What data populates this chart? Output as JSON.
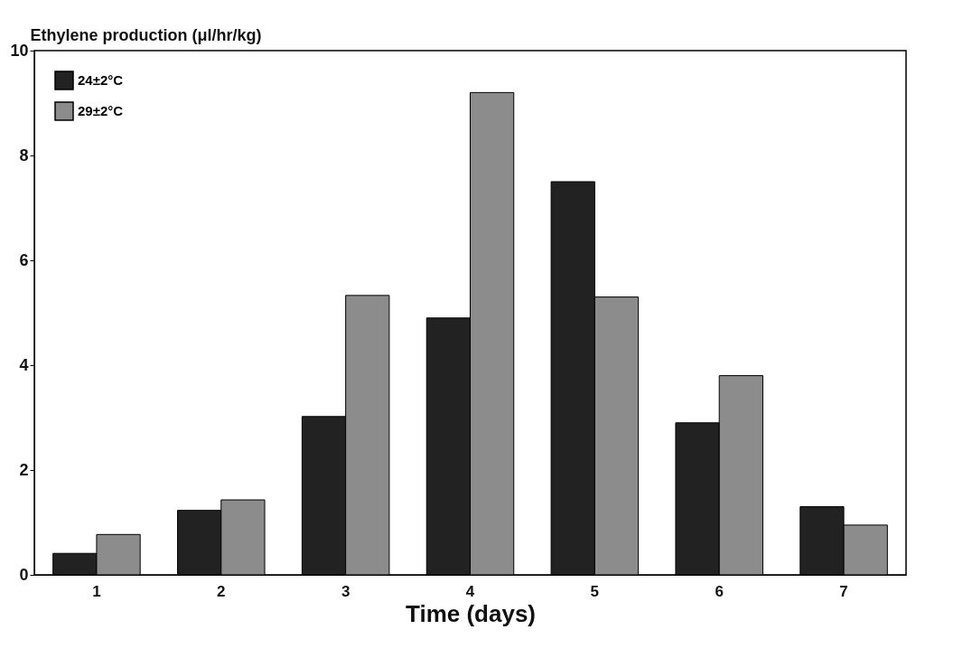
{
  "chart_data": {
    "type": "bar",
    "ylabel": "Ethylene production (μl/hr/kg)",
    "xlabel": "Time (days)",
    "categories": [
      "1",
      "2",
      "3",
      "4",
      "5",
      "6",
      "7"
    ],
    "series": [
      {
        "name": "24±2°C",
        "color": "#222222",
        "values": [
          0.41,
          1.23,
          3.02,
          4.9,
          7.5,
          2.9,
          1.3
        ]
      },
      {
        "name": "29±2°C",
        "color": "#8c8c8c",
        "values": [
          0.77,
          1.43,
          5.33,
          9.2,
          5.3,
          3.8,
          0.95
        ]
      }
    ],
    "ylim": [
      0,
      10
    ],
    "yticks": [
      0,
      2,
      4,
      6,
      8,
      10
    ],
    "grid": false,
    "legend": "top left"
  }
}
